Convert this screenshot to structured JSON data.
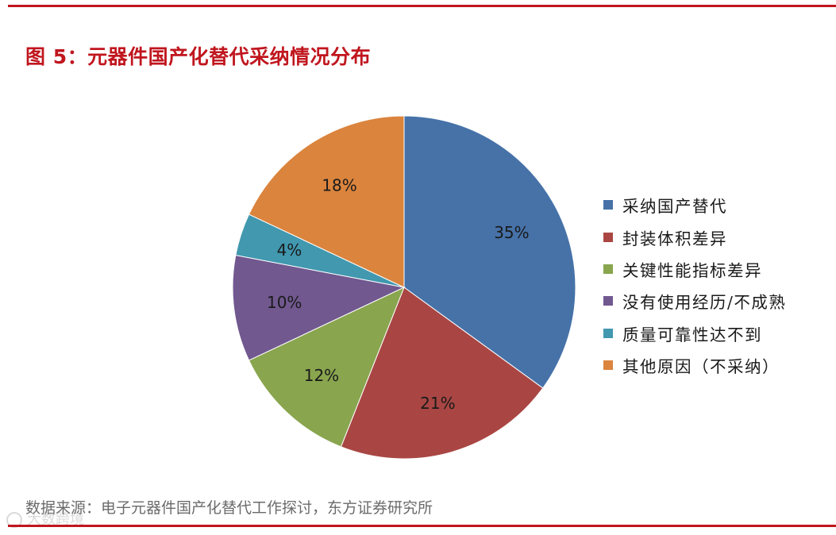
{
  "figure": {
    "title": "图 5：元器件国产化替代采纳情况分布",
    "source": "数据来源：电子元器件国产化替代工作探讨，东方证券研究所",
    "watermark": "大数跨境"
  },
  "chart_data": {
    "type": "pie",
    "title": "",
    "legend_position": "right",
    "slices": [
      {
        "label": "采纳国产替代",
        "value": 35,
        "data_label": "35%",
        "color": "#4672A8"
      },
      {
        "label": "封装体积差异",
        "value": 21,
        "data_label": "21%",
        "color": "#A94643"
      },
      {
        "label": "关键性能指标差异",
        "value": 12,
        "data_label": "12%",
        "color": "#89A54E"
      },
      {
        "label": "没有使用经历/不成熟",
        "value": 10,
        "data_label": "10%",
        "color": "#71588F"
      },
      {
        "label": "质量可靠性达不到",
        "value": 4,
        "data_label": "4%",
        "color": "#4198AF"
      },
      {
        "label": "其他原因（不采纳）",
        "value": 18,
        "data_label": "18%",
        "color": "#DB843D"
      }
    ]
  }
}
